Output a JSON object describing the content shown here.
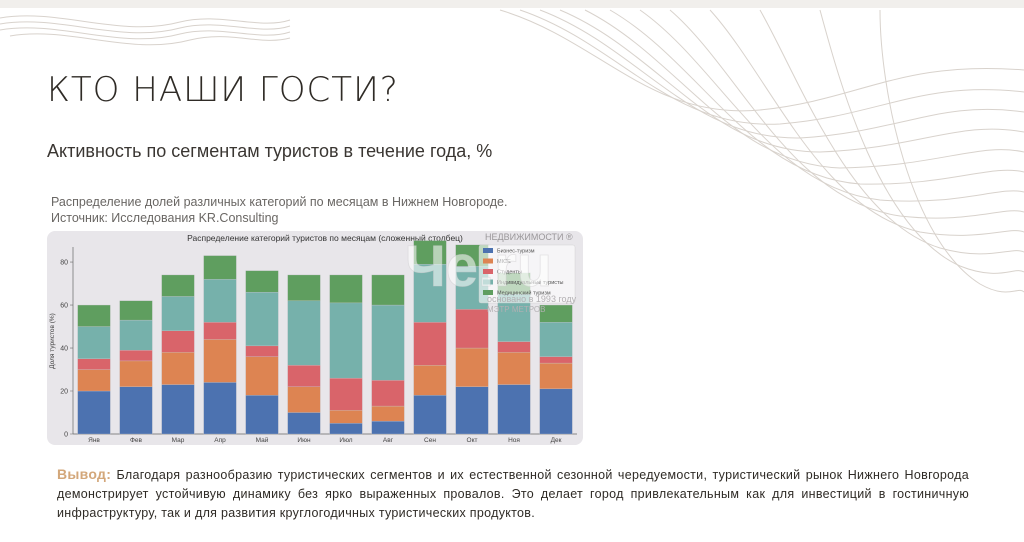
{
  "page": {
    "title": "КТО НАШИ ГОСТИ?",
    "subtitle": "Активность по сегментам туристов в течение года, %",
    "caption_line1": "Распределение долей различных категорий по месяцам в Нижнем Новгороде.",
    "caption_line2": "Источник: Исследования KR.Consulting"
  },
  "conclusion": {
    "label": "Вывод:",
    "text": "Благодаря разнообразию туристических сегментов и их естественной сезонной чередуемости, туристический рынок Нижнего Новгорода демонстрирует устойчивую динамику без ярко выраженных провалов. Это делает город привлекательным как для инвестиций в гостиничную инфраструктуру, так и для развития круглогодичных туристических продуктов."
  },
  "watermark": {
    "logo": "Че.ru",
    "tagline": "НЕДВИЖИМОСТИ ®",
    "line1": "основано в 1993 году",
    "line2": "МЭТР МЕТРОВ"
  },
  "colors": {
    "Бизнес-туризм": "#4c72b0",
    "MICE": "#dd8452",
    "Студенты": "#d9646a",
    "Индивидуальные туристы": "#76b1ab",
    "Медицинский туризм": "#5f9e5f"
  },
  "chart_data": {
    "type": "bar",
    "stacked": true,
    "title": "Распределение категорий туристов по месяцам (сложенный столбец)",
    "xlabel": "",
    "ylabel": "Доля туристов (%)",
    "ylim": [
      0,
      87
    ],
    "yticks": [
      0,
      20,
      40,
      60,
      80
    ],
    "grid": false,
    "legend_position": "top-right",
    "categories": [
      "Янв",
      "Фев",
      "Мар",
      "Апр",
      "Май",
      "Июн",
      "Июл",
      "Авг",
      "Сен",
      "Окт",
      "Ноя",
      "Дек"
    ],
    "series": [
      {
        "name": "Бизнес-туризм",
        "values": [
          20,
          22,
          23,
          24,
          18,
          10,
          5,
          6,
          18,
          22,
          23,
          21
        ]
      },
      {
        "name": "MICE",
        "values": [
          10,
          12,
          15,
          20,
          18,
          12,
          6,
          7,
          14,
          18,
          15,
          12
        ]
      },
      {
        "name": "Студенты",
        "values": [
          5,
          5,
          10,
          8,
          5,
          10,
          15,
          12,
          20,
          18,
          5,
          3
        ]
      },
      {
        "name": "Индивидуальные туристы",
        "values": [
          15,
          14,
          16,
          20,
          25,
          30,
          35,
          35,
          27,
          20,
          22,
          16
        ]
      },
      {
        "name": "Медицинский туризм",
        "values": [
          10,
          9,
          10,
          11,
          10,
          12,
          13,
          14,
          11,
          10,
          10,
          8
        ]
      }
    ]
  }
}
